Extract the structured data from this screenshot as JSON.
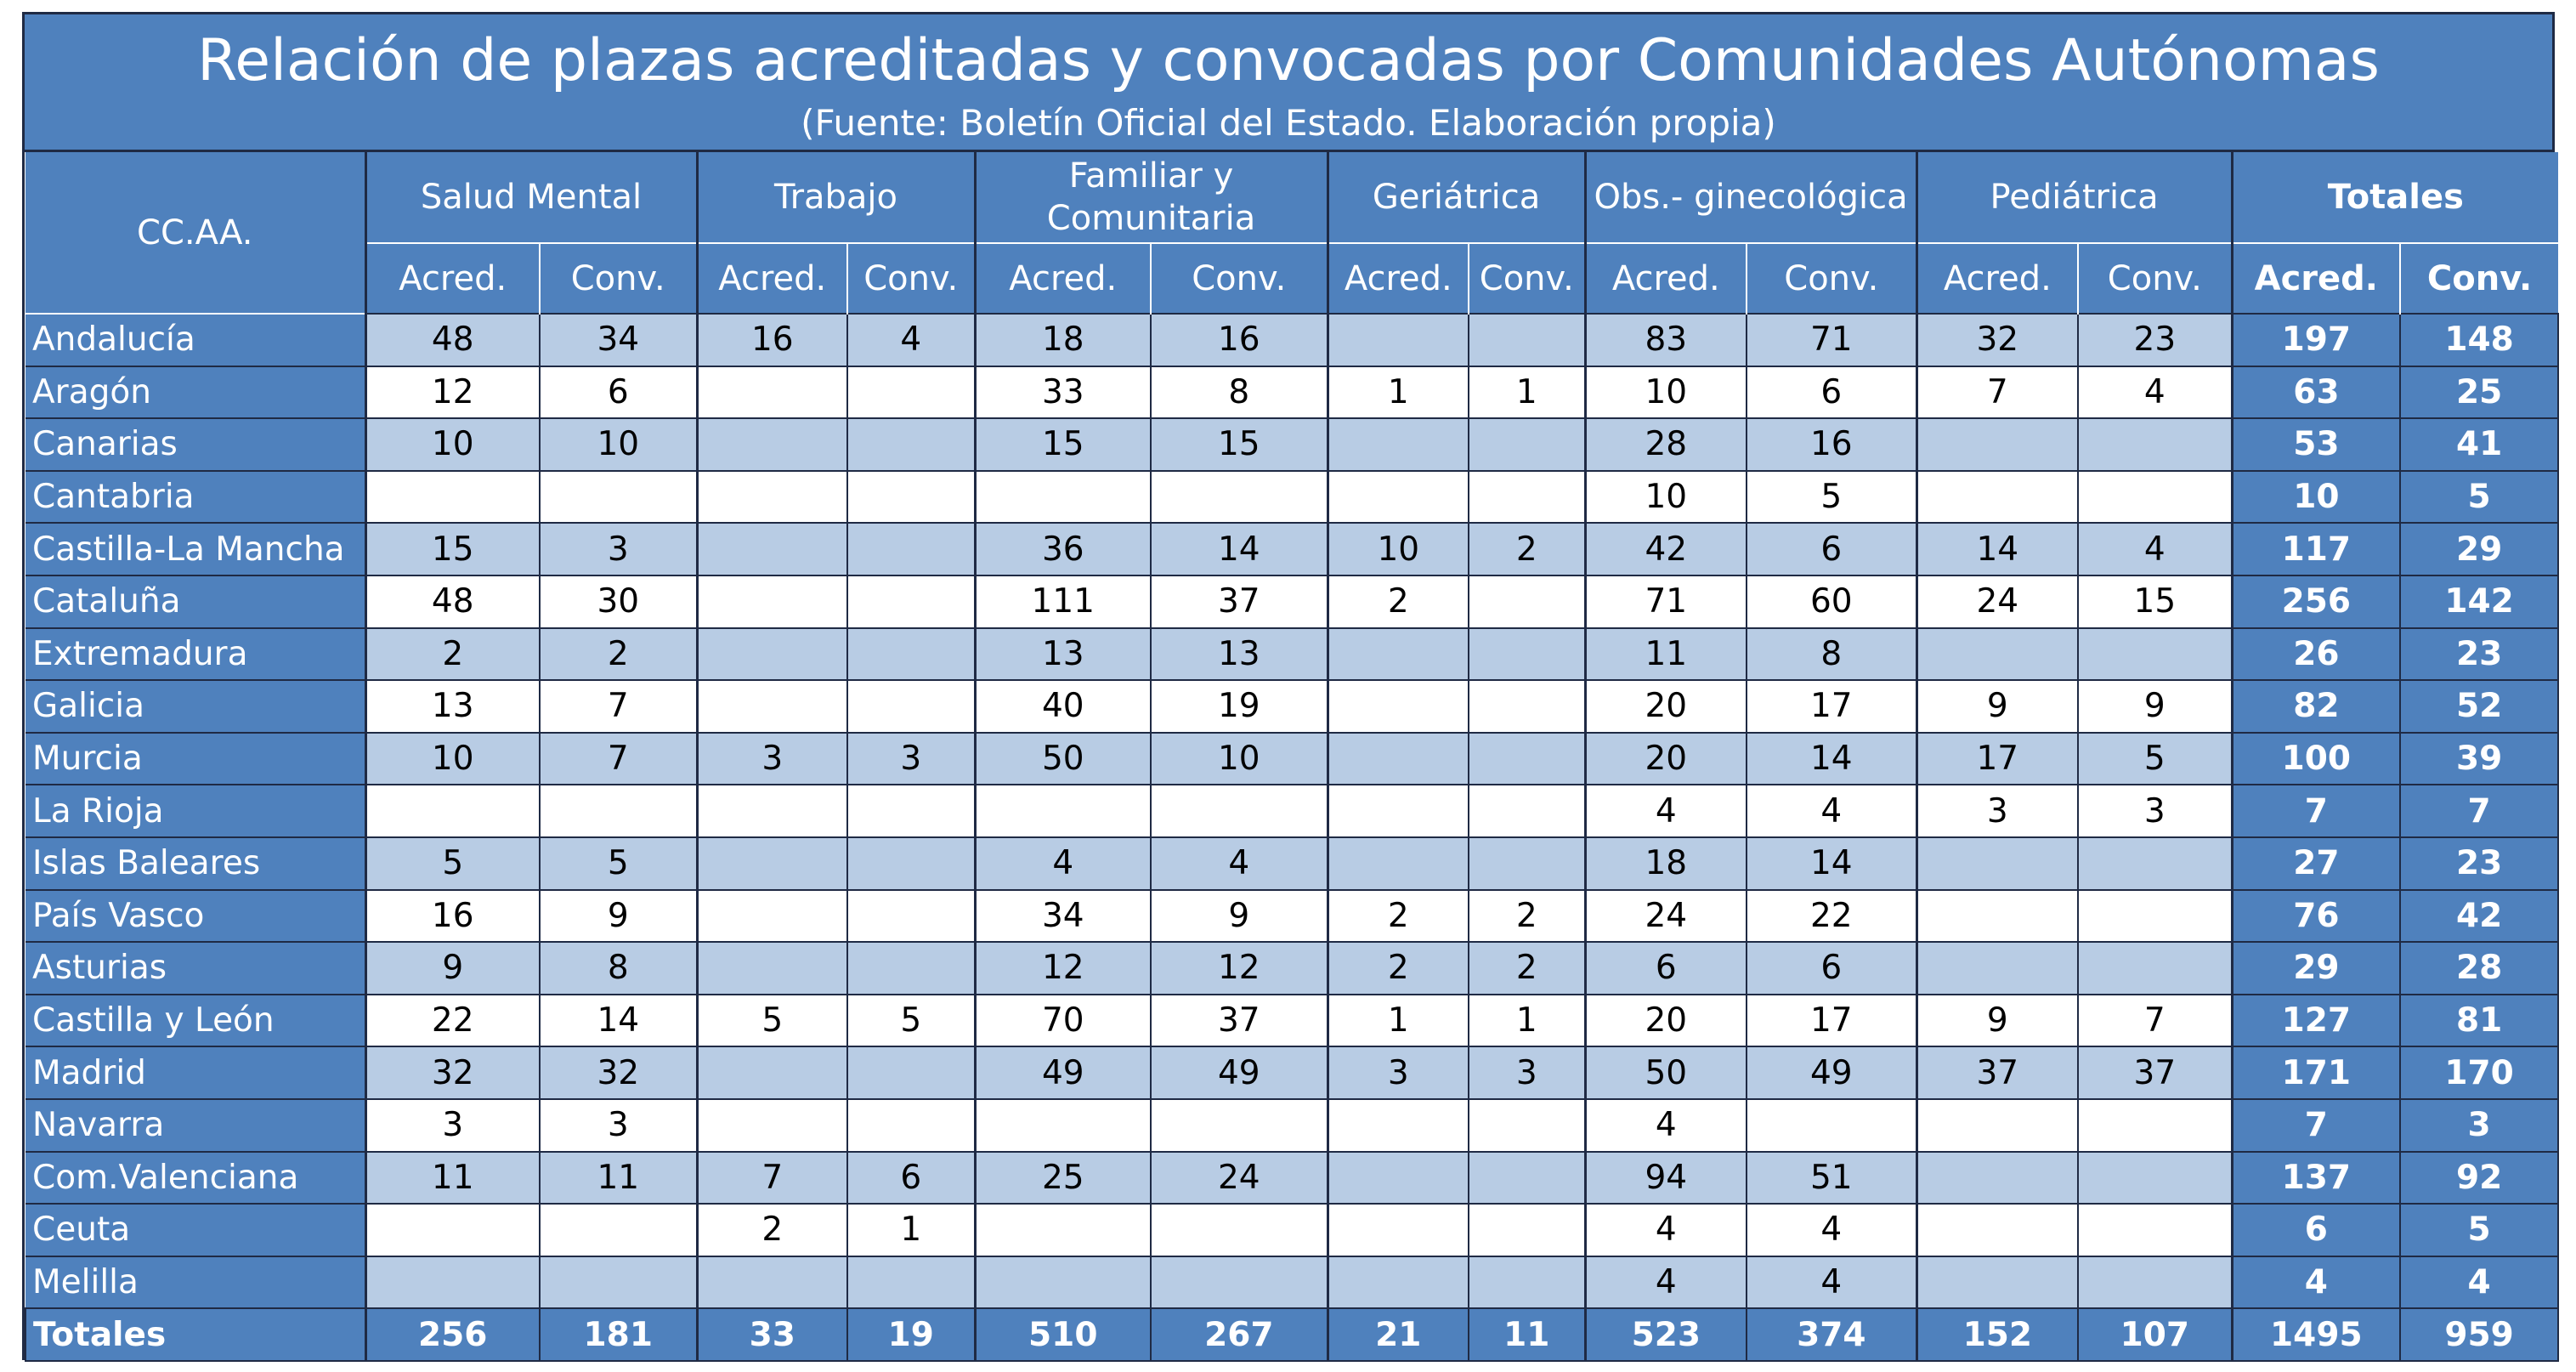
{
  "chart_data": {
    "type": "table",
    "title": "Relación de plazas acreditadas y convocadas por Comunidades Autónomas",
    "subtitle": "(Fuente: Boletín Oficial del Estado. Elaboración propia)",
    "row_header": "CC.AA.",
    "groups": [
      {
        "label": "Salud Mental"
      },
      {
        "label": "Trabajo"
      },
      {
        "label": "Familiar y Comunitaria"
      },
      {
        "label": "Geriátrica"
      },
      {
        "label": "Obs.- ginecológica"
      },
      {
        "label": "Pediátrica"
      },
      {
        "label": "Totales"
      }
    ],
    "subheaders": {
      "acred": "Acred.",
      "conv": "Conv."
    },
    "rows": [
      {
        "name": "Andalucía",
        "cells": [
          "48",
          "34",
          "16",
          "4",
          "18",
          "16",
          "",
          "",
          "83",
          "71",
          "32",
          "23"
        ],
        "totals": [
          "197",
          "148"
        ]
      },
      {
        "name": "Aragón",
        "cells": [
          "12",
          "6",
          "",
          "",
          "33",
          "8",
          "1",
          "1",
          "10",
          "6",
          "7",
          "4"
        ],
        "totals": [
          "63",
          "25"
        ]
      },
      {
        "name": "Canarias",
        "cells": [
          "10",
          "10",
          "",
          "",
          "15",
          "15",
          "",
          "",
          "28",
          "16",
          "",
          ""
        ],
        "totals": [
          "53",
          "41"
        ]
      },
      {
        "name": "Cantabria",
        "cells": [
          "",
          "",
          "",
          "",
          "",
          "",
          "",
          "",
          "10",
          "5",
          "",
          ""
        ],
        "totals": [
          "10",
          "5"
        ]
      },
      {
        "name": "Castilla-La Mancha",
        "cells": [
          "15",
          "3",
          "",
          "",
          "36",
          "14",
          "10",
          "2",
          "42",
          "6",
          "14",
          "4"
        ],
        "totals": [
          "117",
          "29"
        ]
      },
      {
        "name": "Cataluña",
        "cells": [
          "48",
          "30",
          "",
          "",
          "111",
          "37",
          "2",
          "",
          "71",
          "60",
          "24",
          "15"
        ],
        "totals": [
          "256",
          "142"
        ]
      },
      {
        "name": "Extremadura",
        "cells": [
          "2",
          "2",
          "",
          "",
          "13",
          "13",
          "",
          "",
          "11",
          "8",
          "",
          ""
        ],
        "totals": [
          "26",
          "23"
        ]
      },
      {
        "name": "Galicia",
        "cells": [
          "13",
          "7",
          "",
          "",
          "40",
          "19",
          "",
          "",
          "20",
          "17",
          "9",
          "9"
        ],
        "totals": [
          "82",
          "52"
        ]
      },
      {
        "name": "Murcia",
        "cells": [
          "10",
          "7",
          "3",
          "3",
          "50",
          "10",
          "",
          "",
          "20",
          "14",
          "17",
          "5"
        ],
        "totals": [
          "100",
          "39"
        ]
      },
      {
        "name": "La Rioja",
        "cells": [
          "",
          "",
          "",
          "",
          "",
          "",
          "",
          "",
          "4",
          "4",
          "3",
          "3"
        ],
        "totals": [
          "7",
          "7"
        ]
      },
      {
        "name": "Islas Baleares",
        "cells": [
          "5",
          "5",
          "",
          "",
          "4",
          "4",
          "",
          "",
          "18",
          "14",
          "",
          ""
        ],
        "totals": [
          "27",
          "23"
        ]
      },
      {
        "name": "País Vasco",
        "cells": [
          "16",
          "9",
          "",
          "",
          "34",
          "9",
          "2",
          "2",
          "24",
          "22",
          "",
          ""
        ],
        "totals": [
          "76",
          "42"
        ]
      },
      {
        "name": "Asturias",
        "cells": [
          "9",
          "8",
          "",
          "",
          "12",
          "12",
          "2",
          "2",
          "6",
          "6",
          "",
          ""
        ],
        "totals": [
          "29",
          "28"
        ]
      },
      {
        "name": "Castilla y León",
        "cells": [
          "22",
          "14",
          "5",
          "5",
          "70",
          "37",
          "1",
          "1",
          "20",
          "17",
          "9",
          "7"
        ],
        "totals": [
          "127",
          "81"
        ]
      },
      {
        "name": "Madrid",
        "cells": [
          "32",
          "32",
          "",
          "",
          "49",
          "49",
          "3",
          "3",
          "50",
          "49",
          "37",
          "37"
        ],
        "totals": [
          "171",
          "170"
        ]
      },
      {
        "name": "Navarra",
        "cells": [
          "3",
          "3",
          "",
          "",
          "",
          "",
          "",
          "",
          "4",
          "",
          "",
          ""
        ],
        "totals": [
          "7",
          "3"
        ]
      },
      {
        "name": "Com.Valenciana",
        "cells": [
          "11",
          "11",
          "7",
          "6",
          "25",
          "24",
          "",
          "",
          "94",
          "51",
          "",
          ""
        ],
        "totals": [
          "137",
          "92"
        ]
      },
      {
        "name": "Ceuta",
        "cells": [
          "",
          "",
          "2",
          "1",
          "",
          "",
          "",
          "",
          "4",
          "4",
          "",
          ""
        ],
        "totals": [
          "6",
          "5"
        ]
      },
      {
        "name": "Melilla",
        "cells": [
          "",
          "",
          "",
          "",
          "",
          "",
          "",
          "",
          "4",
          "4",
          "",
          ""
        ],
        "totals": [
          "4",
          "4"
        ]
      }
    ],
    "totals_row": {
      "name": "Totales",
      "cells": [
        "256",
        "181",
        "33",
        "19",
        "510",
        "267",
        "21",
        "11",
        "523",
        "374",
        "152",
        "107"
      ],
      "totals": [
        "1495",
        "959"
      ]
    }
  },
  "colors": {
    "header": "#4f81bd",
    "band_light": "#b8cce4",
    "band_white": "#ffffff",
    "border": "#1f2a44"
  }
}
